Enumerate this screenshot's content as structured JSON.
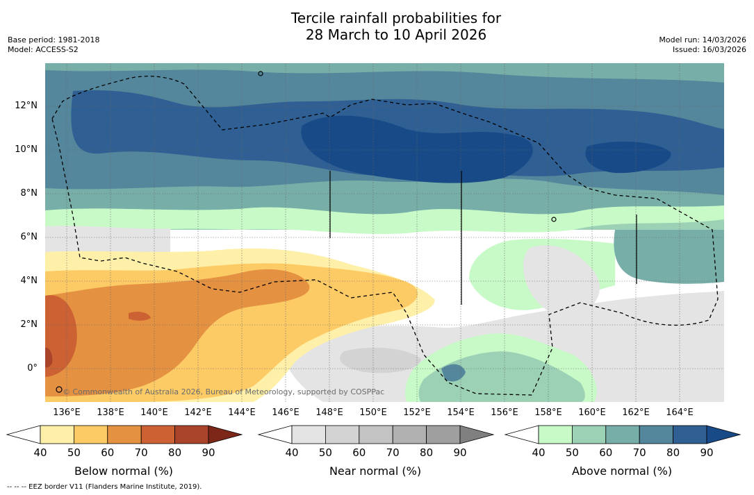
{
  "title": {
    "line1": "Tercile rainfall probabilities for",
    "line2": "28 March to 10 April 2026"
  },
  "meta": {
    "base_period": "Base period: 1981-2018",
    "model": "Model: ACCESS-S2",
    "model_run": "Model run: 14/03/2026",
    "issued": "Issued: 16/03/2026"
  },
  "map": {
    "lat_labels": [
      "12°N",
      "10°N",
      "8°N",
      "6°N",
      "4°N",
      "2°N",
      "0°"
    ],
    "lon_labels": [
      "136°E",
      "138°E",
      "140°E",
      "142°E",
      "144°E",
      "146°E",
      "148°E",
      "150°E",
      "152°E",
      "154°E",
      "156°E",
      "158°E",
      "160°E",
      "162°E",
      "164°E"
    ],
    "copyright": "© Commonwealth of Australia 2026, Bureau of Meteorology, supported by COSPPac"
  },
  "colorbars": [
    {
      "title": "Below normal (%)",
      "ticks": [
        "40",
        "50",
        "60",
        "70",
        "80",
        "90"
      ],
      "colors": [
        "#ffffff",
        "#fef0a8",
        "#fdcb66",
        "#e59142",
        "#cc6233",
        "#a9432a",
        "#7d2718"
      ]
    },
    {
      "title": "Near normal (%)",
      "ticks": [
        "40",
        "50",
        "60",
        "70",
        "80",
        "90"
      ],
      "colors": [
        "#ffffff",
        "#e4e4e4",
        "#d3d3d3",
        "#c3c3c3",
        "#b1b1b1",
        "#9f9f9f",
        "#808080"
      ]
    },
    {
      "title": "Above normal (%)",
      "ticks": [
        "40",
        "50",
        "60",
        "70",
        "80",
        "90"
      ],
      "colors": [
        "#ffffff",
        "#c8fac8",
        "#9dd1b6",
        "#77aea8",
        "#54879c",
        "#2f5f93",
        "#174a87"
      ]
    }
  ],
  "footnote": "-- -- -- EEZ border V11 (Flanders Marine Institute, 2019)."
}
